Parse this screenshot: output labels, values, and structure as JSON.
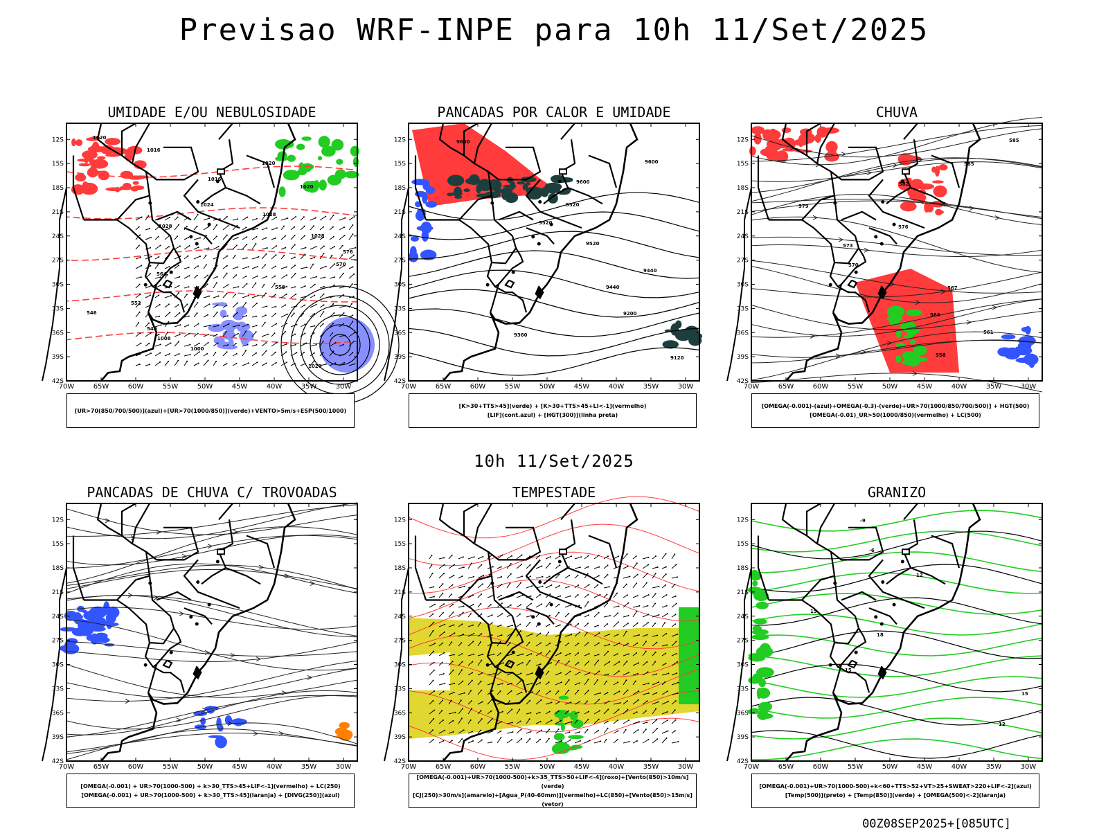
{
  "header": {
    "title": "Previsao WRF-INPE  para 10h 11/Set/2025"
  },
  "mid_date": "10h 11/Set/2025",
  "footer": "00Z08SEP2025+[085UTC]",
  "axes": {
    "lat_labels": [
      "12S",
      "15S",
      "18S",
      "21S",
      "24S",
      "27S",
      "30S",
      "33S",
      "36S",
      "39S",
      "42S"
    ],
    "lon_labels": [
      "70W",
      "65W",
      "60W",
      "55W",
      "50W",
      "45W",
      "40W",
      "35W",
      "30W"
    ]
  },
  "panels": [
    {
      "id": "umidade",
      "title": "UMIDADE E/OU NEBULOSIDADE",
      "legend": [
        "[UR>70(850/700/500)](azul)+[UR>70(1000/850)](verde)+VENTO>5m/s+ESP(500/1000)"
      ]
    },
    {
      "id": "pancadas-calor",
      "title": "PANCADAS POR CALOR E UMIDADE",
      "legend": [
        "[K>30+TTS>45](verde) + [K>30+TTS>45+LI<-1](vermelho)",
        "[LIF](cont.azul) + [HGT(300)](linha preta)"
      ]
    },
    {
      "id": "chuva",
      "title": "CHUVA",
      "legend": [
        "[OMEGA(-0.001)-(azul)+OMEGA(-0.3)-(verde)+UR>70(1000/850/700/500)] + HGT(500)",
        "[OMEGA(-0.01)_UR>50(1000/850)(vermelho) + LC(500)"
      ]
    },
    {
      "id": "trovoadas",
      "title": "PANCADAS DE CHUVA C/ TROVOADAS",
      "legend": [
        "[OMEGA(-0.001) + UR>70(1000-500) + k>30_TTS>45+LIF<-1](vermelho) + LC(250)",
        "[OMEGA(-0.001) + UR>70(1000-500) + k>30_TTS>45](laranja) + [DIVG(250)](azul)"
      ]
    },
    {
      "id": "tempestade",
      "title": "TEMPESTADE",
      "legend": [
        "[OMEGA(-0.001)+UR>70(1000-500)+k>35_TTS>50+LIF<-4](roxo)+[Vento(850)>10m/s](verde)",
        "[CJ(250)>30m/s](amarelo)+[Agua_P(40-60mm)](vermelho)+LC(850)+[Vento(850)>15m/s](vetor)"
      ]
    },
    {
      "id": "granizo",
      "title": "GRANIZO",
      "legend": [
        "[OMEGA(-0.001)+UR>70(1000-500)+k<60+TTS>52+VT>25+SWEAT>220+LIF<-2](azul)",
        "[Temp(500)](preto) + [Temp(850)](verde) + [OMEGA(500)<-2](laranja)"
      ]
    }
  ],
  "contour_labels": {
    "umidade": [
      "1020",
      "1016",
      "1020",
      "1016",
      "1020",
      "1024",
      "1028",
      "1028",
      "1028",
      "576",
      "570",
      "564",
      "558",
      "552",
      "546",
      "540",
      "1008",
      "1000",
      "1020"
    ],
    "pancadas-calor": [
      "9600",
      "9600",
      "9600",
      "9520",
      "9520",
      "9520",
      "9440",
      "9440",
      "9200",
      "9360",
      "9120"
    ],
    "chuva": [
      "585",
      "585",
      "582",
      "579",
      "576",
      "573",
      "570",
      "567",
      "564",
      "561",
      "558"
    ],
    "granizo": [
      "-9",
      "-6",
      "12",
      "15",
      "18",
      "15",
      "15",
      "12"
    ]
  },
  "colors": {
    "coast": "#000000",
    "stream": "#222222",
    "red": "#ff3b3b",
    "green": "#22cc22",
    "blue": "#3355ff",
    "lavender": "#8890ff",
    "teal": "#1e3e3e",
    "yellow": "#e0d830",
    "orange": "#ff8000"
  }
}
